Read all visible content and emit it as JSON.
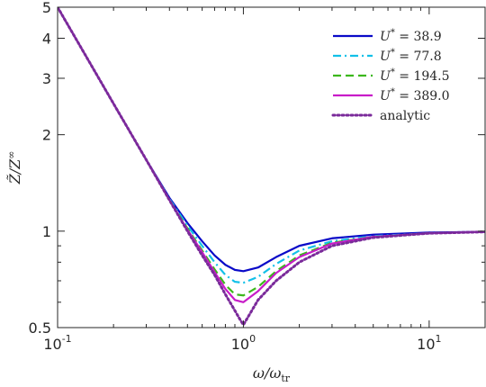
{
  "chart_data": {
    "type": "line",
    "title": "",
    "xlabel": "ω/ω_tr",
    "ylabel": "Z̃/Z^∞",
    "xscale": "log",
    "yscale": "log",
    "xlim": [
      0.1,
      20
    ],
    "ylim": [
      0.5,
      5
    ],
    "x_ticks": [
      {
        "value": 0.1,
        "base": "10",
        "exp": "-1"
      },
      {
        "value": 1,
        "base": "10",
        "exp": "0"
      },
      {
        "value": 10,
        "base": "10",
        "exp": "1"
      }
    ],
    "y_ticks": [
      {
        "value": 0.5,
        "label": "0.5"
      },
      {
        "value": 1,
        "label": "1"
      },
      {
        "value": 2,
        "label": "2"
      },
      {
        "value": 3,
        "label": "3"
      },
      {
        "value": 4,
        "label": "4"
      },
      {
        "value": 5,
        "label": "5"
      }
    ],
    "grid": false,
    "legend_position": "top-right",
    "series": [
      {
        "name": "U* = 38.9",
        "color": "#0a0ac8",
        "dash": "solid",
        "x": [
          0.1,
          0.2,
          0.3,
          0.4,
          0.5,
          0.6,
          0.7,
          0.8,
          0.9,
          1.0,
          1.2,
          1.5,
          2,
          3,
          5,
          10,
          20
        ],
        "y": [
          5.0,
          2.5,
          1.67,
          1.27,
          1.06,
          0.93,
          0.84,
          0.785,
          0.757,
          0.75,
          0.77,
          0.83,
          0.9,
          0.95,
          0.975,
          0.99,
          0.995
        ]
      },
      {
        "name": "U* = 77.8",
        "color": "#12c0e8",
        "dash": "dashdot",
        "x": [
          0.1,
          0.2,
          0.3,
          0.4,
          0.5,
          0.6,
          0.7,
          0.8,
          0.9,
          1.0,
          1.2,
          1.5,
          2,
          3,
          5,
          10,
          20
        ],
        "y": [
          5.0,
          2.5,
          1.67,
          1.26,
          1.04,
          0.9,
          0.8,
          0.73,
          0.695,
          0.69,
          0.72,
          0.79,
          0.87,
          0.93,
          0.965,
          0.985,
          0.995
        ]
      },
      {
        "name": "U* = 194.5",
        "color": "#3cb81c",
        "dash": "dash",
        "x": [
          0.1,
          0.2,
          0.3,
          0.4,
          0.5,
          0.6,
          0.7,
          0.8,
          0.9,
          1.0,
          1.2,
          1.5,
          2,
          3,
          5,
          10,
          20
        ],
        "y": [
          5.0,
          2.5,
          1.67,
          1.25,
          1.02,
          0.87,
          0.76,
          0.68,
          0.635,
          0.63,
          0.67,
          0.75,
          0.84,
          0.92,
          0.96,
          0.985,
          0.995
        ]
      },
      {
        "name": "U* = 389.0",
        "color": "#c81cc8",
        "dash": "solid",
        "x": [
          0.1,
          0.2,
          0.3,
          0.4,
          0.5,
          0.6,
          0.7,
          0.8,
          0.9,
          1.0,
          1.2,
          1.5,
          2,
          3,
          5,
          10,
          20
        ],
        "y": [
          5.0,
          2.5,
          1.67,
          1.25,
          1.01,
          0.86,
          0.745,
          0.66,
          0.61,
          0.6,
          0.65,
          0.74,
          0.83,
          0.915,
          0.96,
          0.985,
          0.995
        ]
      },
      {
        "name": "analytic",
        "color": "#7a2a9a",
        "dash": "dot",
        "x": [
          0.1,
          0.2,
          0.3,
          0.4,
          0.5,
          0.6,
          0.7,
          0.8,
          0.9,
          0.95,
          1.0,
          1.05,
          1.1,
          1.2,
          1.5,
          2,
          3,
          5,
          10,
          20
        ],
        "y": [
          5.0,
          2.5,
          1.67,
          1.25,
          1.0,
          0.84,
          0.73,
          0.635,
          0.565,
          0.535,
          0.51,
          0.535,
          0.56,
          0.61,
          0.7,
          0.8,
          0.9,
          0.955,
          0.985,
          0.995
        ]
      }
    ],
    "legend": [
      {
        "prefix": "U",
        "sup": "*",
        "suffix": " = 38.9"
      },
      {
        "prefix": "U",
        "sup": "*",
        "suffix": " = 77.8"
      },
      {
        "prefix": "U",
        "sup": "*",
        "suffix": " = 194.5"
      },
      {
        "prefix": "U",
        "sup": "*",
        "suffix": " = 389.0"
      },
      {
        "prefix": "",
        "sup": "",
        "suffix": "analytic"
      }
    ]
  }
}
